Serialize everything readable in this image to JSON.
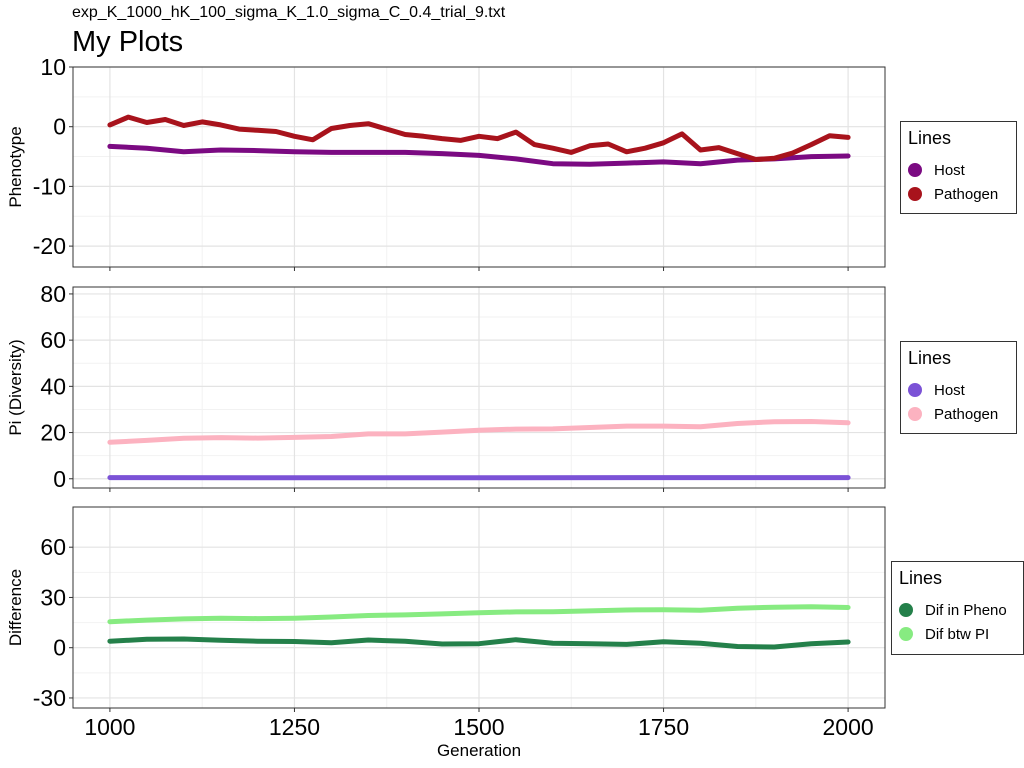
{
  "page": {
    "subtitle": "exp_K_1000_hK_100_sigma_K_1.0_sigma_C_0.4_trial_9.txt",
    "title": "My Plots"
  },
  "chart_data": [
    {
      "type": "line",
      "title": "",
      "ylabel": "Phenotype",
      "xlabel": "",
      "xlim": [
        950,
        2050
      ],
      "ylim": [
        -23.5,
        10
      ],
      "yticks": [
        10,
        0,
        -10,
        -20
      ],
      "yticklabels": [
        "10",
        "0",
        "-10",
        "-20"
      ],
      "xticks": [
        1000,
        1250,
        1500,
        1750,
        2000
      ],
      "grid": true,
      "legend": {
        "title": "Lines",
        "position": "right"
      },
      "series": [
        {
          "name": "Host",
          "color": "#7b0a82",
          "x": [
            1000,
            1050,
            1100,
            1150,
            1200,
            1250,
            1300,
            1350,
            1400,
            1450,
            1500,
            1550,
            1600,
            1650,
            1700,
            1750,
            1800,
            1850,
            1900,
            1950,
            2000
          ],
          "y": [
            -3.3,
            -3.6,
            -4.2,
            -3.9,
            -4.0,
            -4.2,
            -4.3,
            -4.3,
            -4.3,
            -4.5,
            -4.8,
            -5.4,
            -6.2,
            -6.3,
            -6.1,
            -5.9,
            -6.2,
            -5.6,
            -5.4,
            -5.0,
            -4.9
          ]
        },
        {
          "name": "Pathogen",
          "color": "#a8131c",
          "x": [
            1000,
            1025,
            1050,
            1075,
            1100,
            1125,
            1150,
            1175,
            1200,
            1225,
            1250,
            1275,
            1300,
            1325,
            1350,
            1375,
            1400,
            1425,
            1450,
            1475,
            1500,
            1525,
            1550,
            1575,
            1600,
            1625,
            1650,
            1675,
            1700,
            1725,
            1750,
            1775,
            1800,
            1825,
            1850,
            1875,
            1900,
            1925,
            1950,
            1975,
            2000
          ],
          "y": [
            0.3,
            1.6,
            0.7,
            1.2,
            0.2,
            0.8,
            0.3,
            -0.4,
            -0.6,
            -0.8,
            -1.6,
            -2.2,
            -0.3,
            0.2,
            0.5,
            -0.4,
            -1.3,
            -1.6,
            -2.0,
            -2.3,
            -1.6,
            -2.0,
            -0.9,
            -3.0,
            -3.6,
            -4.3,
            -3.2,
            -2.9,
            -4.2,
            -3.6,
            -2.7,
            -1.2,
            -3.9,
            -3.5,
            -4.5,
            -5.5,
            -5.3,
            -4.4,
            -3.0,
            -1.5,
            -1.8
          ]
        }
      ]
    },
    {
      "type": "line",
      "title": "",
      "ylabel": "Pi (Diversity)",
      "xlabel": "",
      "xlim": [
        950,
        2050
      ],
      "ylim": [
        -4,
        83
      ],
      "yticks": [
        0,
        20,
        40,
        60,
        80
      ],
      "yticklabels": [
        "0",
        "20",
        "40",
        "60",
        "80"
      ],
      "xticks": [
        1000,
        1250,
        1500,
        1750,
        2000
      ],
      "grid": true,
      "legend": {
        "title": "Lines",
        "position": "right"
      },
      "series": [
        {
          "name": "Host",
          "color": "#7b52d6",
          "x": [
            1000,
            1250,
            1500,
            1750,
            2000
          ],
          "y": [
            0.5,
            0.4,
            0.4,
            0.5,
            0.5
          ]
        },
        {
          "name": "Pathogen",
          "color": "#fcb2c0",
          "x": [
            1000,
            1050,
            1100,
            1150,
            1200,
            1250,
            1300,
            1350,
            1400,
            1450,
            1500,
            1550,
            1600,
            1650,
            1700,
            1750,
            1800,
            1850,
            1900,
            1950,
            2000
          ],
          "y": [
            15.8,
            16.6,
            17.5,
            17.8,
            17.6,
            17.9,
            18.3,
            19.4,
            19.4,
            20.2,
            21.0,
            21.5,
            21.6,
            22.2,
            22.8,
            22.8,
            22.5,
            23.9,
            24.7,
            24.8,
            24.2
          ]
        }
      ]
    },
    {
      "type": "line",
      "title": "",
      "ylabel": "Difference",
      "xlabel": "Generation",
      "xlim": [
        950,
        2050
      ],
      "ylim": [
        -36,
        84
      ],
      "yticks": [
        60,
        30,
        0,
        -30
      ],
      "yticklabels": [
        "60",
        "30",
        "0",
        "-30"
      ],
      "xticks": [
        1000,
        1250,
        1500,
        1750,
        2000
      ],
      "xticklabels": [
        "1000",
        "1250",
        "1500",
        "1750",
        "2000"
      ],
      "grid": true,
      "legend": {
        "title": "Lines",
        "position": "right"
      },
      "series": [
        {
          "name": "Dif in Pheno",
          "color": "#24804a",
          "x": [
            1000,
            1050,
            1100,
            1150,
            1200,
            1250,
            1300,
            1350,
            1400,
            1450,
            1500,
            1550,
            1600,
            1650,
            1700,
            1750,
            1800,
            1850,
            1900,
            1950,
            2000
          ],
          "y": [
            3.9,
            5.0,
            5.2,
            4.5,
            3.9,
            3.7,
            3.0,
            4.6,
            3.8,
            2.2,
            2.4,
            4.8,
            2.7,
            2.3,
            2.0,
            3.5,
            2.6,
            0.7,
            0.4,
            2.3,
            3.4
          ]
        },
        {
          "name": "Dif btw PI",
          "color": "#87eb81",
          "x": [
            1000,
            1050,
            1100,
            1150,
            1200,
            1250,
            1300,
            1350,
            1400,
            1450,
            1500,
            1550,
            1600,
            1650,
            1700,
            1750,
            1800,
            1850,
            1900,
            1950,
            2000
          ],
          "y": [
            15.5,
            16.5,
            17.2,
            17.6,
            17.4,
            17.6,
            18.3,
            19.2,
            19.6,
            20.2,
            20.9,
            21.4,
            21.5,
            22.0,
            22.5,
            22.7,
            22.4,
            23.6,
            24.2,
            24.5,
            24.0
          ]
        }
      ]
    }
  ]
}
